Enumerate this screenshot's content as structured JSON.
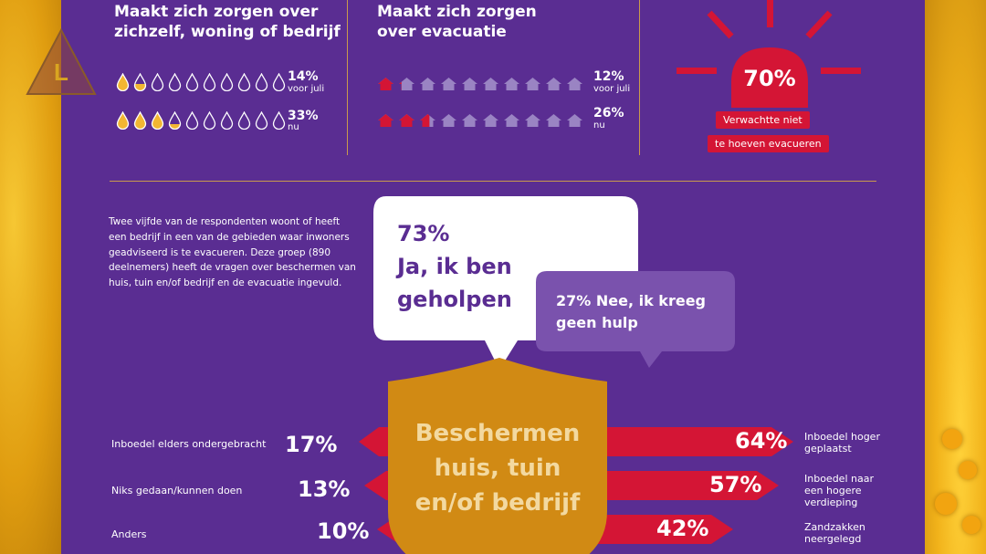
{
  "logo_letter": "L",
  "section1": {
    "title_line1": "Maakt zich zorgen over",
    "title_line2": "zichzelf, woning of bedrijf",
    "before": {
      "pct": "14%",
      "label": "voor juli",
      "fraction": 0.14
    },
    "now": {
      "pct": "33%",
      "label": "nu",
      "fraction": 0.33
    }
  },
  "section2": {
    "title_line1": "Maakt zich zorgen",
    "title_line2": "over evacuatie",
    "before": {
      "pct": "12%",
      "label": "voor juli",
      "fraction": 0.12
    },
    "now": {
      "pct": "26%",
      "label": "nu",
      "fraction": 0.26
    }
  },
  "section3": {
    "pct": "70%",
    "label_line1": "Verwachtte niet",
    "label_line2": "te hoeven evacueren"
  },
  "intro": "Twee vijfde van de respondenten woont of heeft een bedrijf in een van de gebieden waar inwoners geadviseerd is te evacueren. Deze groep (890 deelnemers) heeft de vragen over beschermen van huis, tuin en/of bedrijf en de evacuatie ingevuld.",
  "bubble_yes": {
    "pct": "73%",
    "line1": "Ja, ik ben",
    "line2": "geholpen"
  },
  "bubble_no": {
    "line1": "27% Nee, ik kreeg",
    "line2": "geen hulp"
  },
  "shield": {
    "line1": "Beschermen",
    "line2": "huis, tuin",
    "line3": "en/of bedrijf"
  },
  "left_items": [
    {
      "label": "Inboedel elders ondergebracht",
      "pct": "17%"
    },
    {
      "label": "Niks gedaan/kunnen doen",
      "pct": "13%"
    },
    {
      "label": "Anders",
      "pct": "10%"
    }
  ],
  "right_items": [
    {
      "pct": "64%",
      "label_lines": [
        "Inboedel hoger",
        "geplaatst"
      ]
    },
    {
      "pct": "57%",
      "label_lines": [
        "Inboedel naar",
        "een hogere",
        "verdieping"
      ]
    },
    {
      "pct": "42%",
      "label_lines": [
        "Zandzakken",
        "neergelegd"
      ]
    }
  ],
  "colors": {
    "panel": "#5a2d92",
    "accent_red": "#d41535",
    "gold": "#d18a14",
    "drop_fill": "#f2b632"
  }
}
